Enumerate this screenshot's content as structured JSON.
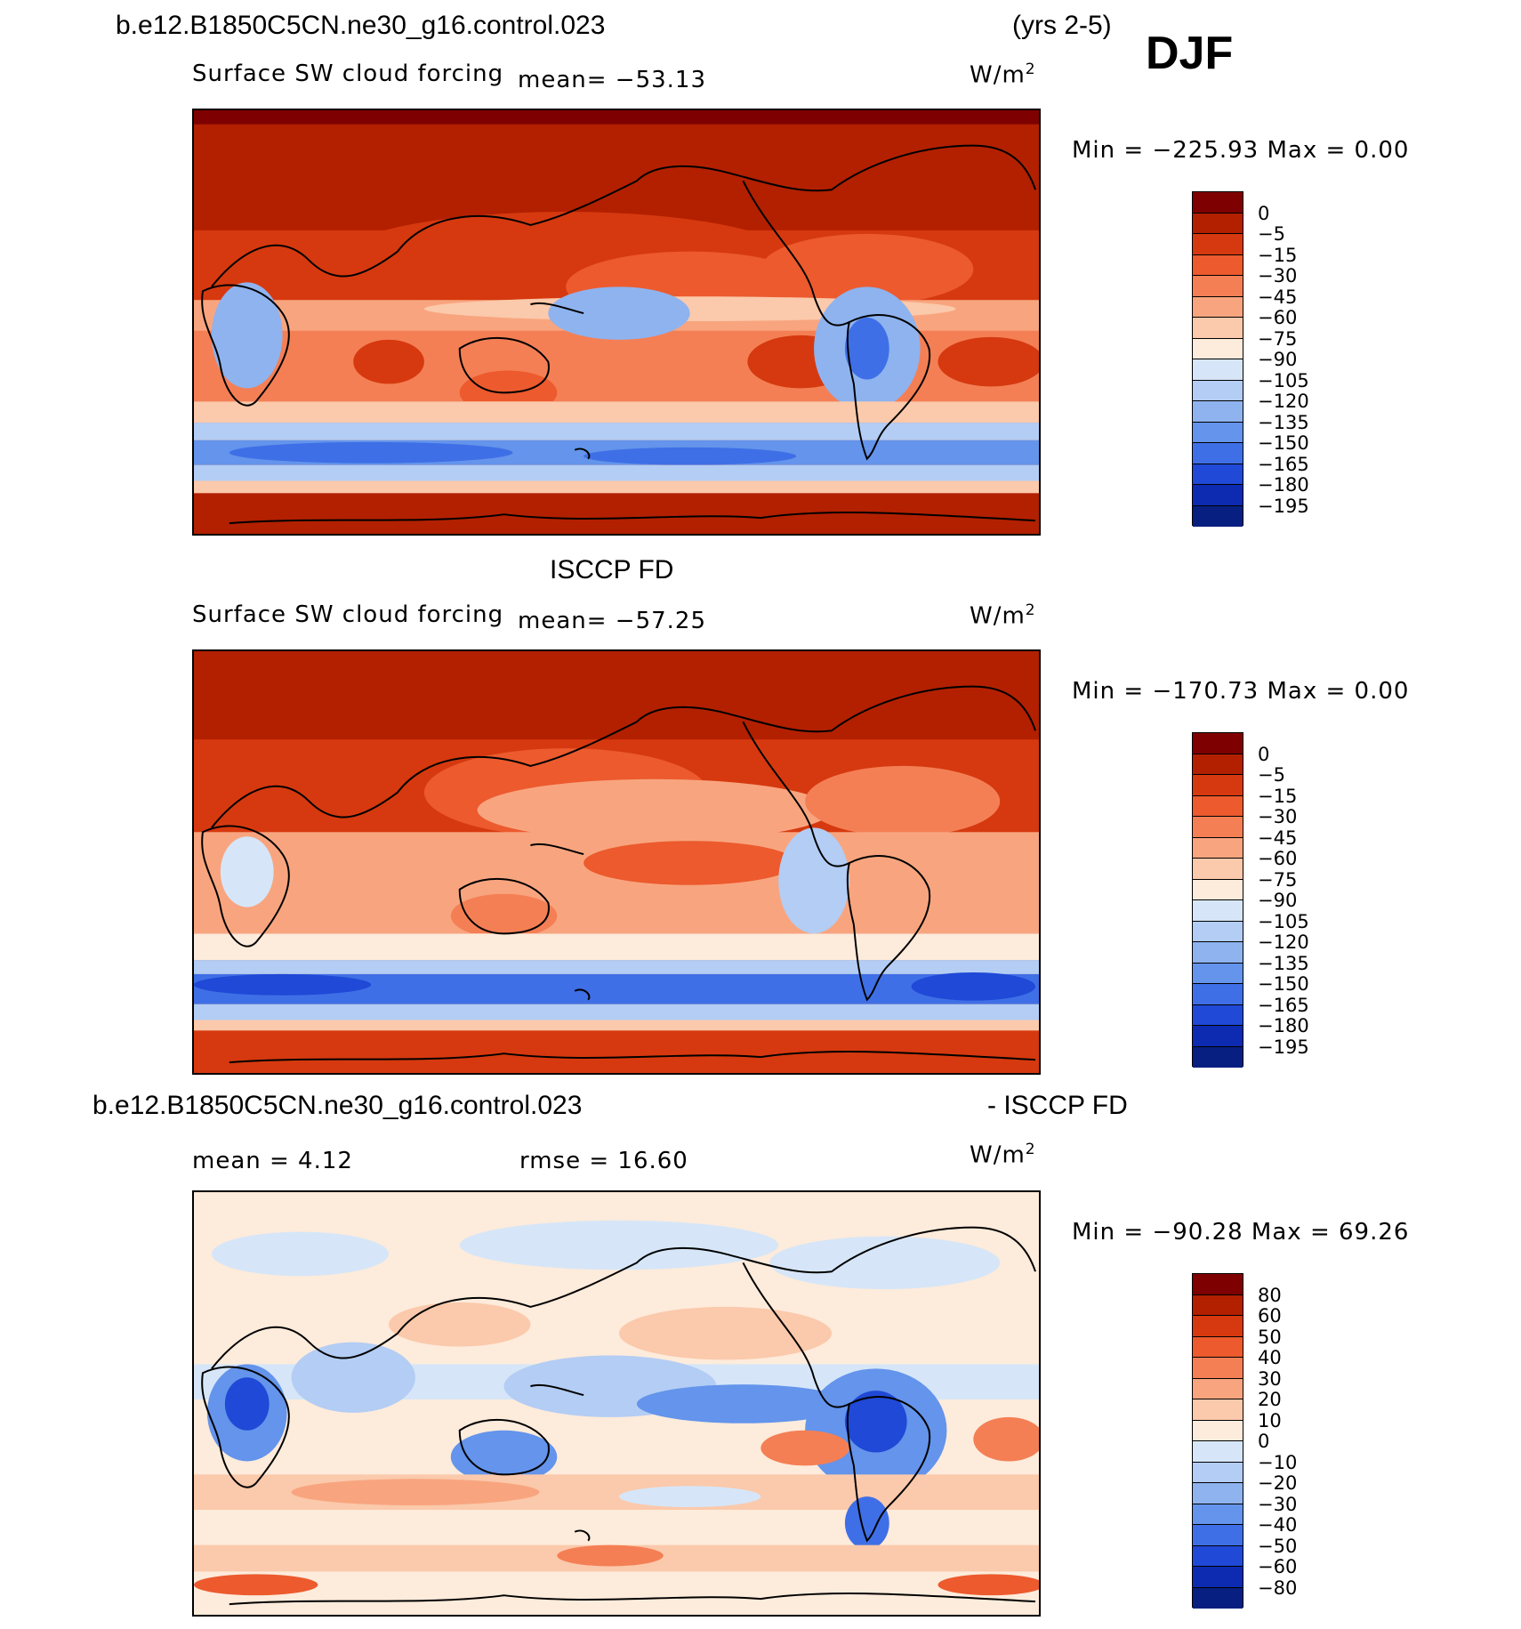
{
  "header": {
    "case_name": "b.e12.B1850C5CN.ne30_g16.control.023",
    "years": "(yrs 2-5)",
    "season": "DJF"
  },
  "panels": [
    {
      "id": "model",
      "title": "",
      "field_label": "Surface SW cloud forcing",
      "stat_left": "mean=  −53.13",
      "stat_right": "",
      "units_base": "W/m",
      "units_exp": "2",
      "minmax": "Min  =  −225.93  Max  =      0.00",
      "colorbar": {
        "labels": [
          "0",
          "−5",
          "−15",
          "−30",
          "−45",
          "−60",
          "−75",
          "−90",
          "−105",
          "−120",
          "−135",
          "−150",
          "−165",
          "−180",
          "−195"
        ],
        "colors": [
          "#7f0000",
          "#b22000",
          "#d6390f",
          "#ec5a2e",
          "#f47f55",
          "#f8a57f",
          "#fbc9ab",
          "#fdebdb",
          "#d6e6f8",
          "#b3cdf4",
          "#8eb3ef",
          "#6494eb",
          "#3f6fe6",
          "#1f49d6",
          "#0c2bb0",
          "#061f80"
        ]
      }
    },
    {
      "id": "obs",
      "title": "ISCCP FD",
      "field_label": "Surface SW cloud forcing",
      "stat_left": "mean=  −57.25",
      "stat_right": "",
      "units_base": "W/m",
      "units_exp": "2",
      "minmax": "Min  =  −170.73  Max  =      0.00",
      "colorbar": {
        "labels": [
          "0",
          "−5",
          "−15",
          "−30",
          "−45",
          "−60",
          "−75",
          "−90",
          "−105",
          "−120",
          "−135",
          "−150",
          "−165",
          "−180",
          "−195"
        ],
        "colors": [
          "#7f0000",
          "#b22000",
          "#d6390f",
          "#ec5a2e",
          "#f47f55",
          "#f8a57f",
          "#fbc9ab",
          "#fdebdb",
          "#d6e6f8",
          "#b3cdf4",
          "#8eb3ef",
          "#6494eb",
          "#3f6fe6",
          "#1f49d6",
          "#0c2bb0",
          "#061f80"
        ]
      }
    },
    {
      "id": "diff",
      "title": "b.e12.B1850C5CN.ne30_g16.control.023",
      "title_right": "- ISCCP FD",
      "field_label": "",
      "stat_left": "mean  =      4.12",
      "stat_right": "rmse  =    16.60",
      "units_base": "W/m",
      "units_exp": "2",
      "minmax": "Min  =  −90.28  Max  =    69.26",
      "colorbar": {
        "labels": [
          "80",
          "60",
          "50",
          "40",
          "30",
          "20",
          "10",
          "0",
          "−10",
          "−20",
          "−30",
          "−40",
          "−50",
          "−60",
          "−80"
        ],
        "colors": [
          "#7f0000",
          "#b22000",
          "#d6390f",
          "#ec5a2e",
          "#f47f55",
          "#f8a57f",
          "#fbc9ab",
          "#fdebdb",
          "#d6e6f8",
          "#b3cdf4",
          "#8eb3ef",
          "#6494eb",
          "#3f6fe6",
          "#1f49d6",
          "#0c2bb0",
          "#061f80"
        ]
      }
    }
  ]
}
